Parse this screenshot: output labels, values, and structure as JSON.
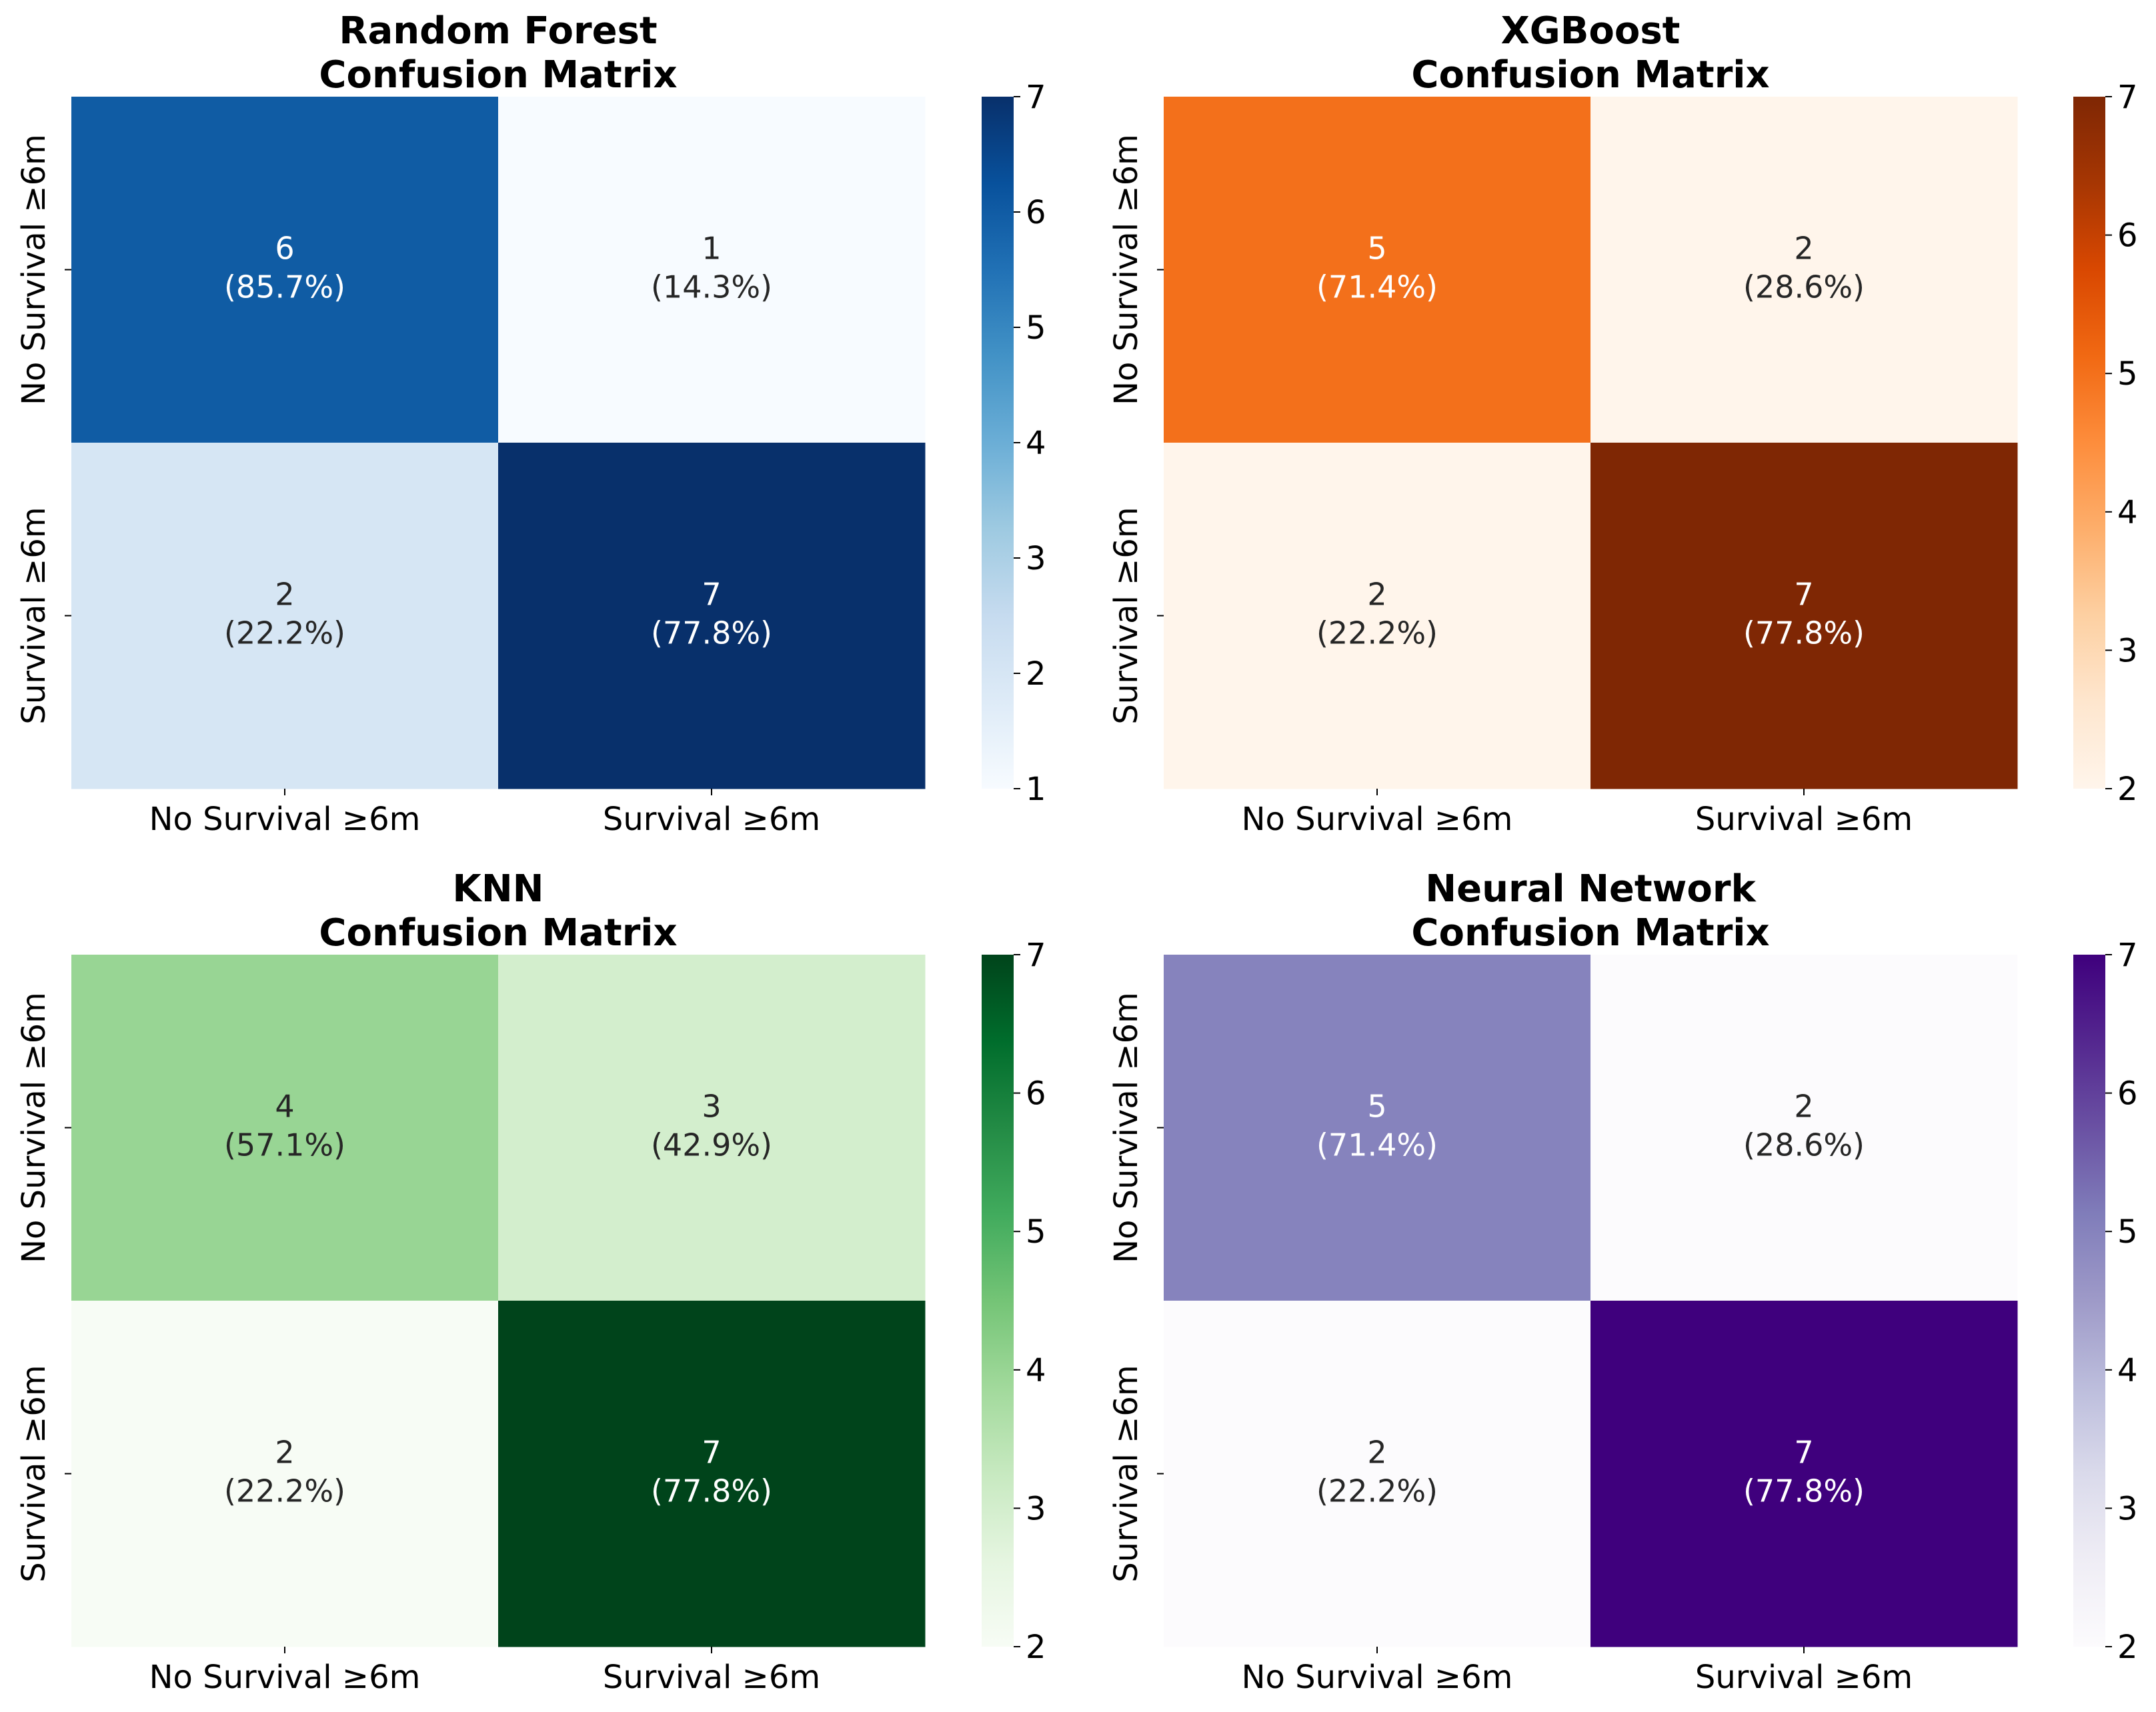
{
  "chart_data": [
    {
      "type": "heatmap",
      "title": [
        "Random Forest",
        "Confusion Matrix"
      ],
      "row_labels": [
        "No Survival ≥6m",
        "Survival ≥6m"
      ],
      "col_labels": [
        "No Survival ≥6m",
        "Survival ≥6m"
      ],
      "values": [
        [
          6,
          1
        ],
        [
          2,
          7
        ]
      ],
      "annotations": [
        [
          "6",
          "(85.7%)",
          "1",
          "(14.3%)"
        ],
        [
          "2",
          "(22.2%)",
          "7",
          "(77.8%)"
        ]
      ],
      "colormap": "Blues",
      "colors": [
        "#f7fbff",
        "#deebf7",
        "#c6dbef",
        "#9ecae1",
        "#6baed6",
        "#4292c6",
        "#2171b5",
        "#08519c",
        "#08306b"
      ],
      "color_range": [
        1,
        7
      ],
      "colorbar_ticks": [
        1,
        2,
        3,
        4,
        5,
        6,
        7
      ]
    },
    {
      "type": "heatmap",
      "title": [
        "XGBoost",
        "Confusion Matrix"
      ],
      "row_labels": [
        "No Survival ≥6m",
        "Survival ≥6m"
      ],
      "col_labels": [
        "No Survival ≥6m",
        "Survival ≥6m"
      ],
      "values": [
        [
          5,
          2
        ],
        [
          2,
          7
        ]
      ],
      "annotations": [
        [
          "5",
          "(71.4%)",
          "2",
          "(28.6%)"
        ],
        [
          "2",
          "(22.2%)",
          "7",
          "(77.8%)"
        ]
      ],
      "colormap": "Oranges",
      "colors": [
        "#fff5eb",
        "#fee6ce",
        "#fdd0a2",
        "#fdae6b",
        "#fd8d3c",
        "#f16913",
        "#d94801",
        "#a63603",
        "#7f2704"
      ],
      "color_range": [
        2,
        7
      ],
      "colorbar_ticks": [
        2,
        3,
        4,
        5,
        6,
        7
      ]
    },
    {
      "type": "heatmap",
      "title": [
        "KNN",
        "Confusion Matrix"
      ],
      "row_labels": [
        "No Survival ≥6m",
        "Survival ≥6m"
      ],
      "col_labels": [
        "No Survival ≥6m",
        "Survival ≥6m"
      ],
      "values": [
        [
          4,
          3
        ],
        [
          2,
          7
        ]
      ],
      "annotations": [
        [
          "4",
          "(57.1%)",
          "3",
          "(42.9%)"
        ],
        [
          "2",
          "(22.2%)",
          "7",
          "(77.8%)"
        ]
      ],
      "colormap": "Greens",
      "colors": [
        "#f7fcf5",
        "#e5f5e0",
        "#c7e9c0",
        "#a1d99b",
        "#74c476",
        "#41ab5d",
        "#238b45",
        "#006d2c",
        "#00441b"
      ],
      "color_range": [
        2,
        7
      ],
      "colorbar_ticks": [
        2,
        3,
        4,
        5,
        6,
        7
      ]
    },
    {
      "type": "heatmap",
      "title": [
        "Neural Network",
        "Confusion Matrix"
      ],
      "row_labels": [
        "No Survival ≥6m",
        "Survival ≥6m"
      ],
      "col_labels": [
        "No Survival ≥6m",
        "Survival ≥6m"
      ],
      "values": [
        [
          5,
          2
        ],
        [
          2,
          7
        ]
      ],
      "annotations": [
        [
          "5",
          "(71.4%)",
          "2",
          "(28.6%)"
        ],
        [
          "2",
          "(22.2%)",
          "7",
          "(77.8%)"
        ]
      ],
      "colormap": "Purples",
      "colors": [
        "#fcfbfd",
        "#efedf5",
        "#dadaeb",
        "#bcbddc",
        "#9e9ac8",
        "#807dba",
        "#6a51a3",
        "#54278f",
        "#3f007d"
      ],
      "color_range": [
        2,
        7
      ],
      "colorbar_ticks": [
        2,
        3,
        4,
        5,
        6,
        7
      ]
    }
  ]
}
